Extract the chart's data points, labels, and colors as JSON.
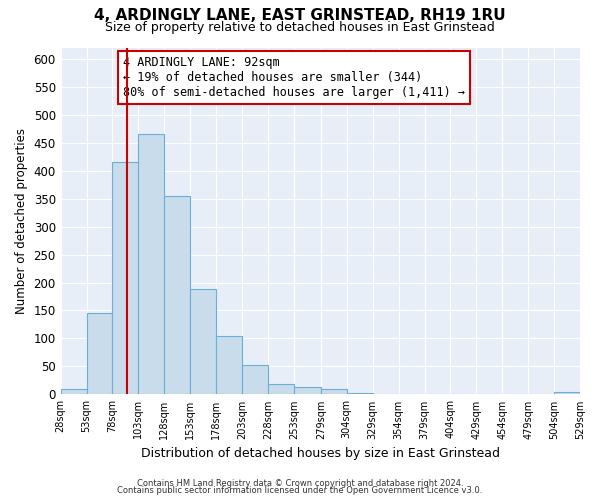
{
  "title": "4, ARDINGLY LANE, EAST GRINSTEAD, RH19 1RU",
  "subtitle": "Size of property relative to detached houses in East Grinstead",
  "xlabel": "Distribution of detached houses by size in East Grinstead",
  "ylabel": "Number of detached properties",
  "footer_line1": "Contains HM Land Registry data © Crown copyright and database right 2024.",
  "footer_line2": "Contains public sector information licensed under the Open Government Licence v3.0.",
  "bar_edges": [
    28,
    53,
    78,
    103,
    128,
    153,
    178,
    203,
    228,
    253,
    279,
    304,
    329,
    354,
    379,
    404,
    429,
    454,
    479,
    504,
    529
  ],
  "bar_heights": [
    10,
    145,
    415,
    465,
    355,
    188,
    105,
    53,
    18,
    14,
    10,
    3,
    0,
    0,
    0,
    0,
    0,
    0,
    0,
    5
  ],
  "bar_color": "#c8dcec",
  "bar_edge_color": "#6baed6",
  "plot_bg_color": "#e8eef8",
  "fig_bg_color": "#ffffff",
  "ylim": [
    0,
    620
  ],
  "yticks": [
    0,
    50,
    100,
    150,
    200,
    250,
    300,
    350,
    400,
    450,
    500,
    550,
    600
  ],
  "property_sqm": 92,
  "vline_color": "#cc0000",
  "annotation_title": "4 ARDINGLY LANE: 92sqm",
  "annotation_line2": "← 19% of detached houses are smaller (344)",
  "annotation_line3": "80% of semi-detached houses are larger (1,411) →",
  "tick_labels": [
    "28sqm",
    "53sqm",
    "78sqm",
    "103sqm",
    "128sqm",
    "153sqm",
    "178sqm",
    "203sqm",
    "228sqm",
    "253sqm",
    "279sqm",
    "304sqm",
    "329sqm",
    "354sqm",
    "379sqm",
    "404sqm",
    "429sqm",
    "454sqm",
    "479sqm",
    "504sqm",
    "529sqm"
  ],
  "grid_color": "#ffffff",
  "title_fontsize": 11,
  "subtitle_fontsize": 9,
  "ylabel_fontsize": 8.5,
  "xlabel_fontsize": 9
}
